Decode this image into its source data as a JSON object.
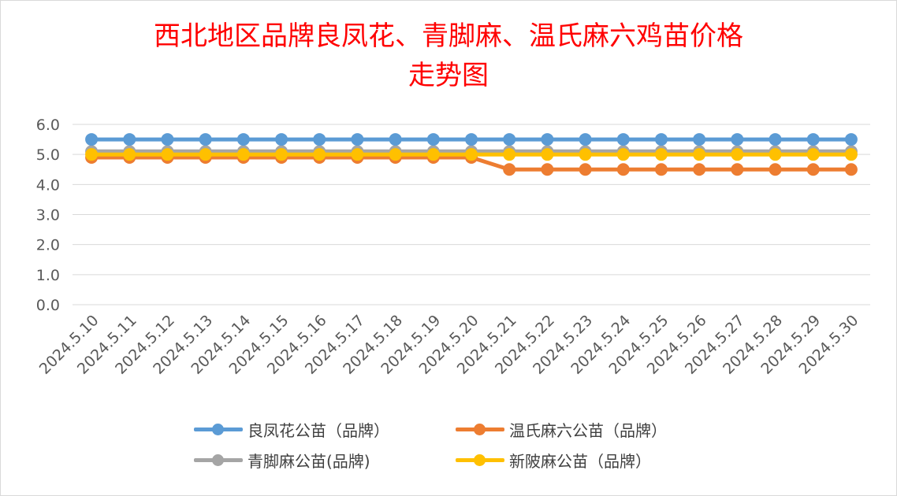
{
  "chart_data": {
    "type": "line",
    "title_line1": "西北地区品牌良凤花、青脚麻、温氏麻六鸡苗价格",
    "title_line2": "走势图",
    "xlabel": "",
    "ylabel": "",
    "ylim": [
      0,
      6
    ],
    "y_ticks": [
      "0.0",
      "1.0",
      "2.0",
      "3.0",
      "4.0",
      "5.0",
      "6.0"
    ],
    "grid": true,
    "legend_position": "bottom",
    "categories": [
      "2024.5.10",
      "2024.5.11",
      "2024.5.12",
      "2024.5.13",
      "2024.5.14",
      "2024.5.15",
      "2024.5.16",
      "2024.5.17",
      "2024.5.18",
      "2024.5.19",
      "2024.5.20",
      "2024.5.21",
      "2024.5.22",
      "2024.5.23",
      "2024.5.24",
      "2024.5.25",
      "2024.5.26",
      "2024.5.27",
      "2024.5.28",
      "2024.5.29",
      "2024.5.30"
    ],
    "series": [
      {
        "name": "良凤花公苗（品牌）",
        "color": "#5b9bd5",
        "values": [
          5.5,
          5.5,
          5.5,
          5.5,
          5.5,
          5.5,
          5.5,
          5.5,
          5.5,
          5.5,
          5.5,
          5.5,
          5.5,
          5.5,
          5.5,
          5.5,
          5.5,
          5.5,
          5.5,
          5.5,
          5.5
        ]
      },
      {
        "name": "温氏麻六公苗（品牌）",
        "color": "#ed7d31",
        "values": [
          4.9,
          4.9,
          4.9,
          4.9,
          4.9,
          4.9,
          4.9,
          4.9,
          4.9,
          4.9,
          4.9,
          4.5,
          4.5,
          4.5,
          4.5,
          4.5,
          4.5,
          4.5,
          4.5,
          4.5,
          4.5
        ]
      },
      {
        "name": "青脚麻公苗(品牌)",
        "color": "#a5a5a5",
        "values": [
          5.1,
          5.1,
          5.1,
          5.1,
          5.1,
          5.1,
          5.1,
          5.1,
          5.1,
          5.1,
          5.1,
          5.1,
          5.1,
          5.1,
          5.1,
          5.1,
          5.1,
          5.1,
          5.1,
          5.1,
          5.1
        ]
      },
      {
        "name": "新陂麻公苗（品牌）",
        "color": "#ffc000",
        "values": [
          5.0,
          5.0,
          5.0,
          5.0,
          5.0,
          5.0,
          5.0,
          5.0,
          5.0,
          5.0,
          5.0,
          5.0,
          5.0,
          5.0,
          5.0,
          5.0,
          5.0,
          5.0,
          5.0,
          5.0,
          5.0
        ]
      }
    ],
    "draw_order": [
      2,
      1,
      0,
      3
    ]
  }
}
